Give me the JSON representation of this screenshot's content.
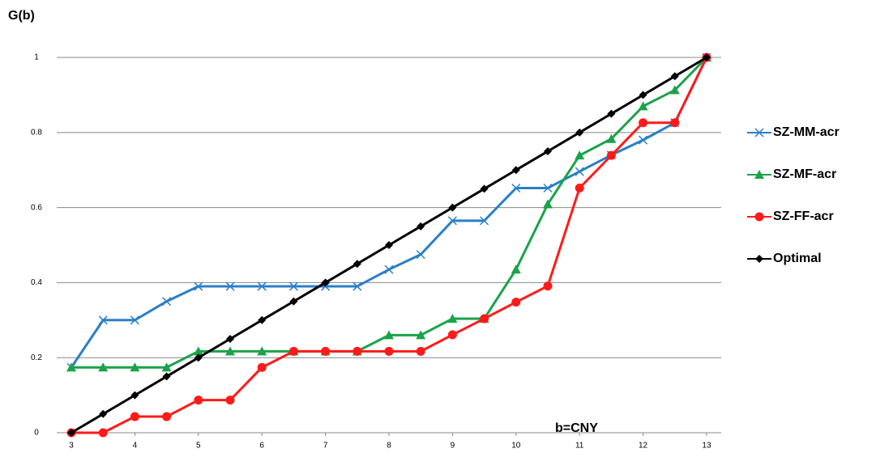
{
  "chart_data": {
    "type": "line",
    "title": "G(b)",
    "x_label": "b=CNY",
    "x": [
      3,
      3.5,
      4,
      4.5,
      5,
      5.5,
      6,
      6.5,
      7,
      7.5,
      8,
      8.5,
      9,
      9.5,
      10,
      10.5,
      11,
      11.5,
      12,
      12.5,
      13
    ],
    "series": [
      {
        "name": "SZ-MM-acr",
        "color": "#2a7fc8",
        "marker": "x",
        "values": [
          0.174,
          0.3,
          0.3,
          0.35,
          0.39,
          0.39,
          0.39,
          0.39,
          0.39,
          0.39,
          0.435,
          0.475,
          0.565,
          0.565,
          0.652,
          0.652,
          0.696,
          0.74,
          0.78,
          0.826,
          1
        ]
      },
      {
        "name": "SZ-MF-acr",
        "color": "#1aa34a",
        "marker": "triangle",
        "values": [
          0.174,
          0.174,
          0.174,
          0.174,
          0.217,
          0.217,
          0.217,
          0.217,
          0.217,
          0.217,
          0.26,
          0.26,
          0.304,
          0.304,
          0.435,
          0.609,
          0.739,
          0.783,
          0.87,
          0.913,
          1
        ]
      },
      {
        "name": "SZ-FF-acr",
        "color": "#ff1a1a",
        "marker": "circle",
        "values": [
          0,
          0,
          0.043,
          0.043,
          0.087,
          0.087,
          0.174,
          0.217,
          0.217,
          0.217,
          0.217,
          0.217,
          0.261,
          0.304,
          0.348,
          0.391,
          0.652,
          0.739,
          0.826,
          0.826,
          1
        ]
      },
      {
        "name": "Optimal",
        "color": "#000000",
        "marker": "diamond",
        "values": [
          0,
          0.05,
          0.1,
          0.15,
          0.2,
          0.25,
          0.3,
          0.35,
          0.4,
          0.45,
          0.5,
          0.55,
          0.6,
          0.65,
          0.7,
          0.75,
          0.8,
          0.85,
          0.9,
          0.95,
          1
        ]
      }
    ],
    "xlim": [
      2.77,
      13.23
    ],
    "xticks": [
      3,
      4,
      5,
      6,
      7,
      8,
      9,
      10,
      11,
      12,
      13
    ],
    "ylim": [
      0,
      1.11
    ],
    "yticks": [
      0,
      0.2,
      0.4,
      0.6,
      0.8,
      1
    ],
    "grid": true
  }
}
